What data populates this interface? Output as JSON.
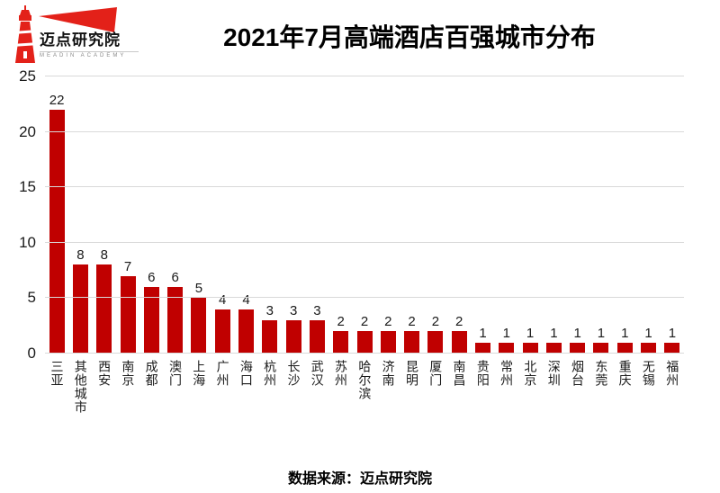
{
  "header": {
    "logo_cn": "迈点研究院",
    "logo_en": "MEADIN ACADEMY",
    "title": "2021年7月高端酒店百强城市分布"
  },
  "chart_data": {
    "type": "bar",
    "title": "2021年7月高端酒店百强城市分布",
    "categories": [
      "三亚",
      "其他城市",
      "西安",
      "南京",
      "成都",
      "澳门",
      "上海",
      "广州",
      "海口",
      "杭州",
      "长沙",
      "武汉",
      "苏州",
      "哈尔滨",
      "济南",
      "昆明",
      "厦门",
      "南昌",
      "贵阳",
      "常州",
      "北京",
      "深圳",
      "烟台",
      "东莞",
      "重庆",
      "无锡",
      "福州"
    ],
    "values": [
      22,
      8,
      8,
      7,
      6,
      6,
      5,
      4,
      4,
      3,
      3,
      3,
      2,
      2,
      2,
      2,
      2,
      2,
      1,
      1,
      1,
      1,
      1,
      1,
      1,
      1,
      1
    ],
    "xlabel": "",
    "ylabel": "",
    "ylim": [
      0,
      25
    ],
    "yticks": [
      0,
      5,
      10,
      15,
      20,
      25
    ],
    "grid": true,
    "legend": false,
    "data_labels": true,
    "bar_color": "#c00000",
    "grid_color": "#d9d9d9"
  },
  "footer": {
    "source": "数据来源：迈点研究院"
  },
  "colors": {
    "bar_red": "#c00000",
    "logo_red": "#e32119",
    "grid_gray": "#d9d9d9",
    "text_black": "#000000"
  }
}
